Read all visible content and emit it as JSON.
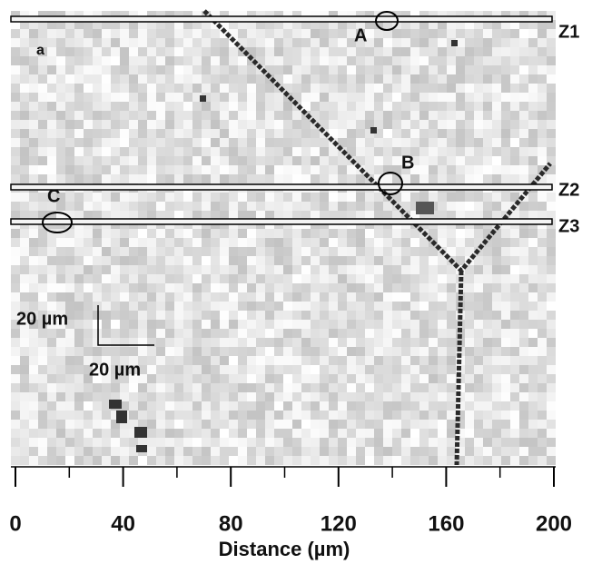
{
  "chart_data": {
    "type": "image",
    "xlabel": "Distance (µm)",
    "xlim": [
      0,
      200
    ],
    "xticks": [
      0,
      40,
      80,
      120,
      160,
      200
    ],
    "xminorticks": [
      20,
      60,
      100,
      140,
      180
    ]
  },
  "annotations": {
    "panel": "a",
    "A": "A",
    "B": "B",
    "C": "C",
    "Z1": "Z1",
    "Z2": "Z2",
    "Z3": "Z3",
    "scale_v": "20 µm",
    "scale_h": "20 µm"
  }
}
